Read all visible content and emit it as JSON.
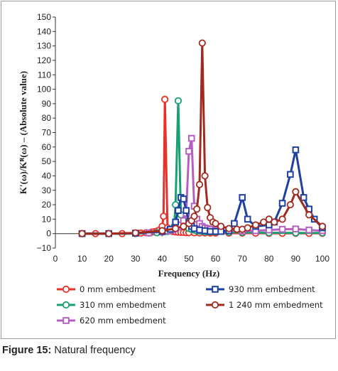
{
  "caption": {
    "label": "Figure 15:",
    "text": " Natural frequency"
  },
  "chart_data": {
    "type": "line",
    "title": "",
    "xlabel": "Frequency (Hz)",
    "ylabel": "K′(ω)/Kᴿ(ω) – (Absolute value)",
    "xlim": [
      0,
      100
    ],
    "ylim": [
      -10,
      150
    ],
    "xticks": [
      0,
      10,
      20,
      30,
      40,
      50,
      60,
      70,
      80,
      90,
      100
    ],
    "yticks": [
      -10,
      0,
      10,
      20,
      30,
      40,
      50,
      60,
      70,
      80,
      90,
      100,
      110,
      120,
      130,
      140,
      150
    ],
    "grid": false,
    "legend_position": "bottom",
    "series": [
      {
        "name": "0 mm embedment",
        "color": "#e8312a",
        "marker": "circle",
        "points": [
          [
            10,
            0
          ],
          [
            15,
            0
          ],
          [
            20,
            0
          ],
          [
            25,
            0
          ],
          [
            30,
            0.2
          ],
          [
            32,
            0.4
          ],
          [
            34,
            0.6
          ],
          [
            36,
            1
          ],
          [
            37,
            1.3
          ],
          [
            38,
            1.7
          ],
          [
            39,
            2.5
          ],
          [
            40,
            5
          ],
          [
            40.5,
            12
          ],
          [
            41,
            93
          ],
          [
            42,
            4
          ],
          [
            43,
            2
          ],
          [
            44,
            1.5
          ],
          [
            45,
            1.2
          ],
          [
            46,
            1
          ],
          [
            47,
            0.9
          ],
          [
            48,
            0.8
          ],
          [
            49,
            0.7
          ],
          [
            50,
            0.7
          ],
          [
            52,
            0.6
          ],
          [
            54,
            0.5
          ],
          [
            56,
            0.5
          ],
          [
            58,
            0.4
          ],
          [
            60,
            0.4
          ],
          [
            65,
            0.3
          ],
          [
            70,
            0.3
          ],
          [
            75,
            0.3
          ],
          [
            80,
            0.2
          ],
          [
            85,
            0.2
          ],
          [
            90,
            0.2
          ],
          [
            95,
            0.2
          ],
          [
            100,
            0.2
          ]
        ]
      },
      {
        "name": "310 mm embedment",
        "color": "#18a070",
        "marker": "circle",
        "points": [
          [
            10,
            0
          ],
          [
            20,
            0
          ],
          [
            30,
            0
          ],
          [
            35,
            0.3
          ],
          [
            38,
            0.6
          ],
          [
            40,
            1
          ],
          [
            42,
            1.5
          ],
          [
            43,
            2
          ],
          [
            44,
            3
          ],
          [
            44.5,
            5
          ],
          [
            45,
            20
          ],
          [
            46,
            92
          ],
          [
            47,
            13
          ],
          [
            48,
            7
          ],
          [
            49,
            5
          ],
          [
            50,
            3.5
          ],
          [
            51,
            3
          ],
          [
            52,
            2.5
          ],
          [
            53,
            2
          ],
          [
            54,
            1.8
          ],
          [
            55,
            1.6
          ],
          [
            56,
            1.5
          ],
          [
            57,
            1.4
          ],
          [
            58,
            1.3
          ],
          [
            60,
            1.2
          ],
          [
            65,
            1
          ],
          [
            70,
            0.8
          ],
          [
            80,
            0.6
          ],
          [
            90,
            0.5
          ],
          [
            100,
            0.5
          ]
        ]
      },
      {
        "name": "620 mm embedment",
        "color": "#b560c0",
        "marker": "square",
        "points": [
          [
            10,
            0
          ],
          [
            20,
            0
          ],
          [
            30,
            0.2
          ],
          [
            35,
            0.5
          ],
          [
            40,
            1.2
          ],
          [
            42,
            1.8
          ],
          [
            44,
            2.5
          ],
          [
            45,
            3.5
          ],
          [
            46,
            4.5
          ],
          [
            47,
            6
          ],
          [
            48,
            9
          ],
          [
            49,
            14
          ],
          [
            50,
            57
          ],
          [
            51,
            66
          ],
          [
            52,
            19
          ],
          [
            53,
            10
          ],
          [
            54,
            7
          ],
          [
            55,
            5
          ],
          [
            56,
            4
          ],
          [
            57,
            3.5
          ],
          [
            58,
            3
          ],
          [
            60,
            2.5
          ],
          [
            65,
            2
          ],
          [
            70,
            1.8
          ],
          [
            75,
            2
          ],
          [
            80,
            2.5
          ],
          [
            85,
            3
          ],
          [
            90,
            3.2
          ],
          [
            95,
            2.5
          ],
          [
            100,
            2
          ]
        ]
      },
      {
        "name": "930 mm embedment",
        "color": "#1e40a0",
        "marker": "square",
        "points": [
          [
            10,
            0
          ],
          [
            20,
            0
          ],
          [
            30,
            0.3
          ],
          [
            40,
            1.5
          ],
          [
            43,
            3
          ],
          [
            45,
            8
          ],
          [
            46,
            16
          ],
          [
            47,
            25
          ],
          [
            48,
            24
          ],
          [
            49,
            16
          ],
          [
            50,
            8
          ],
          [
            51,
            5
          ],
          [
            52,
            3.5
          ],
          [
            54,
            2.5
          ],
          [
            56,
            2
          ],
          [
            58,
            1.5
          ],
          [
            60,
            1.5
          ],
          [
            62,
            1.5
          ],
          [
            65,
            2
          ],
          [
            67,
            7
          ],
          [
            70,
            25
          ],
          [
            72,
            10
          ],
          [
            75,
            5
          ],
          [
            80,
            6
          ],
          [
            82,
            8
          ],
          [
            85,
            21
          ],
          [
            88,
            41
          ],
          [
            90,
            58
          ],
          [
            93,
            25
          ],
          [
            95,
            17
          ],
          [
            97,
            10
          ],
          [
            100,
            4
          ]
        ]
      },
      {
        "name": "1 240 mm embedment",
        "color": "#a02a1e",
        "marker": "circle",
        "points": [
          [
            10,
            0
          ],
          [
            20,
            0
          ],
          [
            30,
            0.5
          ],
          [
            40,
            2
          ],
          [
            45,
            3.5
          ],
          [
            48,
            5
          ],
          [
            50,
            7
          ],
          [
            51,
            9
          ],
          [
            52,
            12
          ],
          [
            53,
            17
          ],
          [
            54,
            34
          ],
          [
            55,
            132
          ],
          [
            56,
            40
          ],
          [
            57,
            18
          ],
          [
            58,
            11
          ],
          [
            59,
            8
          ],
          [
            60,
            7
          ],
          [
            62,
            5
          ],
          [
            65,
            3.5
          ],
          [
            68,
            3
          ],
          [
            70,
            3
          ],
          [
            72,
            4
          ],
          [
            75,
            6
          ],
          [
            78,
            8
          ],
          [
            80,
            10
          ],
          [
            82,
            8
          ],
          [
            85,
            10
          ],
          [
            88,
            20
          ],
          [
            90,
            29
          ],
          [
            95,
            13
          ],
          [
            100,
            5
          ]
        ]
      }
    ]
  }
}
